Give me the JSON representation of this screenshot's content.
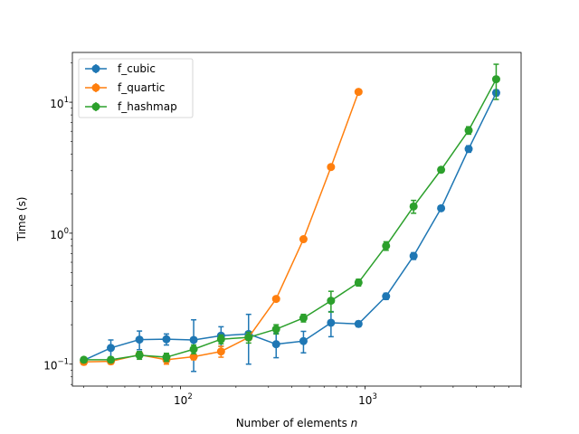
{
  "chart_data": {
    "type": "line",
    "xlabel": "Number of elements",
    "xlabel_var": "n",
    "ylabel": "Time (s)",
    "xscale": "log",
    "yscale": "log",
    "xlim": [
      26,
      7000
    ],
    "ylim": [
      0.068,
      24
    ],
    "x_major_ticks": [
      100,
      1000
    ],
    "y_major_ticks": [
      0.1,
      1,
      10
    ],
    "x_tick_labels": [
      {
        "base": "10",
        "exp": "2"
      },
      {
        "base": "10",
        "exp": "3"
      }
    ],
    "y_tick_labels": [
      {
        "base": "10",
        "exp": "−1"
      },
      {
        "base": "10",
        "exp": "0"
      },
      {
        "base": "10",
        "exp": "1"
      }
    ],
    "legend_position": "upper-left",
    "grid": false,
    "series": [
      {
        "name": "f_cubic",
        "color": "#1f77b4",
        "x": [
          30,
          42,
          60,
          84,
          118,
          166,
          234,
          330,
          464,
          654,
          922,
          1300,
          1832,
          2582,
          3640,
          5130
        ],
        "y": [
          0.107,
          0.133,
          0.154,
          0.155,
          0.153,
          0.165,
          0.17,
          0.142,
          0.15,
          0.207,
          0.203,
          0.33,
          0.67,
          1.55,
          4.4,
          11.8
        ],
        "err": [
          0.004,
          0.02,
          0.025,
          0.015,
          0.065,
          0.028,
          0.07,
          0.03,
          0.028,
          0.045,
          0.01,
          0.018,
          0.04,
          0.06,
          0.25,
          0.6
        ]
      },
      {
        "name": "f_quartic",
        "color": "#ff7f0e",
        "x": [
          30,
          42,
          60,
          84,
          118,
          166,
          234,
          330,
          464,
          654,
          922
        ],
        "y": [
          0.104,
          0.105,
          0.118,
          0.108,
          0.114,
          0.125,
          0.16,
          0.315,
          0.9,
          3.2,
          12.0
        ],
        "err": [
          0.005,
          0.005,
          0.004,
          0.008,
          0.006,
          0.012,
          0.008,
          0.01,
          0.03,
          0.1,
          0.3
        ]
      },
      {
        "name": "f_hashmap",
        "color": "#2ca02c",
        "x": [
          30,
          42,
          60,
          84,
          118,
          166,
          234,
          330,
          464,
          654,
          922,
          1300,
          1832,
          2582,
          3640,
          5130
        ],
        "y": [
          0.108,
          0.108,
          0.117,
          0.113,
          0.13,
          0.155,
          0.16,
          0.185,
          0.225,
          0.305,
          0.42,
          0.8,
          1.6,
          3.05,
          6.1,
          15.0
        ],
        "err": [
          0.004,
          0.004,
          0.008,
          0.008,
          0.01,
          0.012,
          0.015,
          0.015,
          0.015,
          0.055,
          0.025,
          0.06,
          0.18,
          0.12,
          0.4,
          4.5
        ]
      }
    ]
  }
}
